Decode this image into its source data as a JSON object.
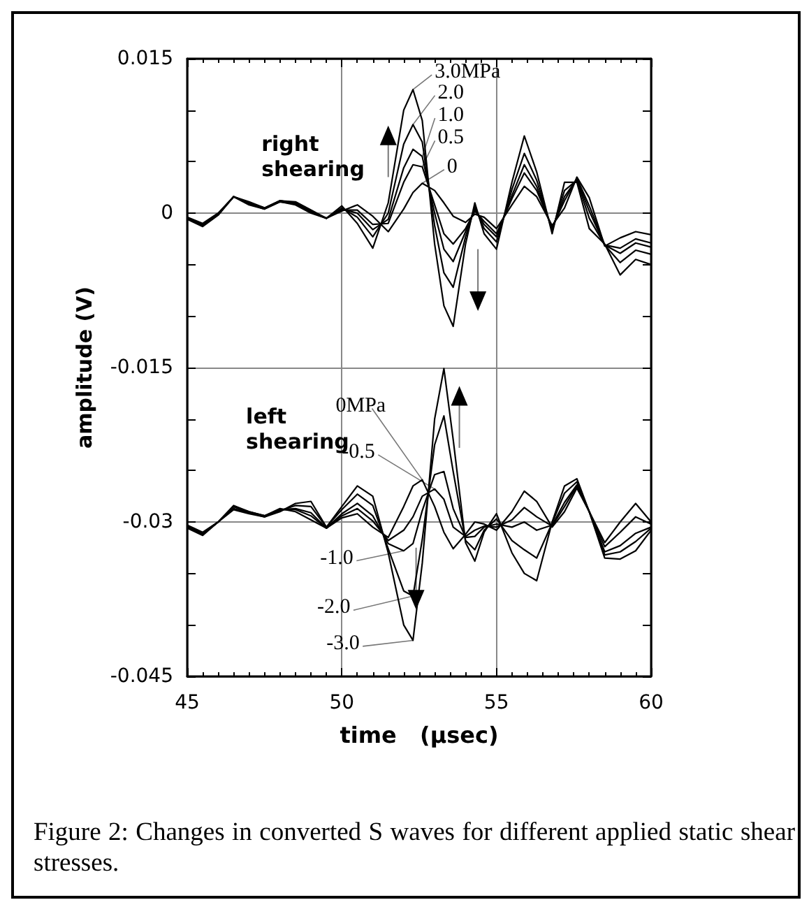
{
  "chart_data": {
    "type": "line",
    "xlabel": "time   (μsec)",
    "ylabel": "amplitude (V)",
    "x": [
      45,
      45.5,
      46,
      46.5,
      47,
      47.5,
      48,
      48.5,
      49,
      49.5,
      50,
      50.5,
      51,
      51.5,
      52,
      52.3,
      52.6,
      53,
      53.3,
      53.6,
      54,
      54.3,
      54.6,
      55,
      55.5,
      55.9,
      56.3,
      56.8,
      57.2,
      57.6,
      58,
      58.5,
      59,
      59.5,
      60
    ],
    "series": [
      {
        "name": "0",
        "color": "#000000",
        "values": [
          -0.0006,
          -0.0013,
          -0.0002,
          0.0016,
          0.0011,
          0.0005,
          0.0012,
          0.0011,
          0.0003,
          -0.0005,
          0.0002,
          0.0008,
          -0.0003,
          -0.0018,
          0.0004,
          0.002,
          0.0029,
          0.0022,
          0.001,
          -0.0003,
          -0.0009,
          -0.0001,
          -0.0004,
          -0.0015,
          0.0008,
          0.0026,
          0.0016,
          -0.0012,
          0.0005,
          0.0035,
          0.0015,
          -0.0032,
          -0.0024,
          -0.0018,
          -0.0021
        ]
      },
      {
        "name": "0.5",
        "color": "#000000",
        "values": [
          -0.0005,
          -0.0012,
          -0.0001,
          0.0016,
          0.001,
          0.0005,
          0.0012,
          0.001,
          0.0002,
          -0.0005,
          0.0003,
          0.0003,
          -0.0011,
          -0.001,
          0.003,
          0.0047,
          0.0045,
          0.0008,
          -0.002,
          -0.003,
          -0.0015,
          0.0002,
          -0.0008,
          -0.002,
          0.0014,
          0.0039,
          0.0022,
          -0.0014,
          0.0012,
          0.0034,
          0.0007,
          -0.0031,
          -0.0034,
          -0.0025,
          -0.0029
        ]
      },
      {
        "name": "1.0",
        "color": "#000000",
        "values": [
          -0.0005,
          -0.0012,
          -0.0001,
          0.0016,
          0.001,
          0.0005,
          0.0012,
          0.001,
          0.0002,
          -0.0005,
          0.0004,
          0.0,
          -0.0016,
          -0.0006,
          0.0044,
          0.0062,
          0.0055,
          0.0,
          -0.0035,
          -0.0047,
          -0.0018,
          0.0004,
          -0.0011,
          -0.0023,
          0.0017,
          0.0047,
          0.0026,
          -0.0015,
          0.0016,
          0.0033,
          0.0002,
          -0.0031,
          -0.0039,
          -0.0029,
          -0.0033
        ]
      },
      {
        "name": "2.0",
        "color": "#000000",
        "values": [
          -0.0005,
          -0.0011,
          -0.0001,
          0.0016,
          0.0009,
          0.0004,
          0.0011,
          0.0009,
          0.0001,
          -0.0005,
          0.0005,
          -0.0004,
          -0.0023,
          0.0,
          0.0067,
          0.0086,
          0.0069,
          -0.0012,
          -0.0058,
          -0.0072,
          -0.0023,
          0.0006,
          -0.0015,
          -0.0028,
          0.0023,
          0.0058,
          0.0032,
          -0.0017,
          0.0022,
          0.0032,
          -0.0005,
          -0.0031,
          -0.0048,
          -0.0036,
          -0.004
        ]
      },
      {
        "name": "3.0MPa",
        "color": "#000000",
        "values": [
          -0.0004,
          -0.001,
          0.0,
          0.0016,
          0.0008,
          0.0004,
          0.0011,
          0.0008,
          0.0,
          -0.0005,
          0.0007,
          -0.001,
          -0.0034,
          0.001,
          0.01,
          0.012,
          0.009,
          -0.003,
          -0.009,
          -0.011,
          -0.003,
          0.001,
          -0.002,
          -0.0035,
          0.003,
          0.0075,
          0.004,
          -0.002,
          0.003,
          0.003,
          -0.0015,
          -0.003,
          -0.006,
          -0.0045,
          -0.005
        ]
      },
      {
        "name": "0MPa",
        "color": "#000000",
        "values": [
          -0.0306,
          -0.0313,
          -0.03,
          -0.0284,
          -0.029,
          -0.0294,
          -0.0287,
          -0.029,
          -0.0298,
          -0.0306,
          -0.0296,
          -0.0292,
          -0.0305,
          -0.0315,
          -0.0285,
          -0.0265,
          -0.0259,
          -0.0285,
          -0.031,
          -0.0326,
          -0.0312,
          -0.03,
          -0.0302,
          -0.0308,
          -0.029,
          -0.027,
          -0.028,
          -0.0305,
          -0.029,
          -0.0267,
          -0.029,
          -0.0335,
          -0.0336,
          -0.0328,
          -0.0308
        ]
      },
      {
        "name": "-0.5",
        "color": "#000000",
        "values": [
          -0.0305,
          -0.0312,
          -0.03,
          -0.0285,
          -0.029,
          -0.0294,
          -0.0288,
          -0.0288,
          -0.0294,
          -0.0306,
          -0.0294,
          -0.0287,
          -0.0299,
          -0.0318,
          -0.0308,
          -0.0295,
          -0.0275,
          -0.0268,
          -0.0278,
          -0.0305,
          -0.0314,
          -0.0308,
          -0.0304,
          -0.0305,
          -0.0298,
          -0.0286,
          -0.0295,
          -0.0304,
          -0.0285,
          -0.0265,
          -0.029,
          -0.0332,
          -0.0329,
          -0.0319,
          -0.0306
        ]
      },
      {
        "name": "-1.0",
        "color": "#000000",
        "values": [
          -0.0305,
          -0.0312,
          -0.03,
          -0.0285,
          -0.0291,
          -0.0294,
          -0.0288,
          -0.0287,
          -0.0291,
          -0.0306,
          -0.0292,
          -0.0282,
          -0.0294,
          -0.0321,
          -0.0328,
          -0.0321,
          -0.0289,
          -0.0254,
          -0.0251,
          -0.0287,
          -0.0315,
          -0.0314,
          -0.0305,
          -0.0302,
          -0.0305,
          -0.03,
          -0.0308,
          -0.0303,
          -0.0281,
          -0.0264,
          -0.029,
          -0.0329,
          -0.0323,
          -0.0311,
          -0.0305
        ]
      },
      {
        "name": "-2.0",
        "color": "#000000",
        "values": [
          -0.0304,
          -0.0311,
          -0.03,
          -0.0287,
          -0.0291,
          -0.0295,
          -0.0289,
          -0.0284,
          -0.0285,
          -0.0305,
          -0.0288,
          -0.0273,
          -0.0284,
          -0.0326,
          -0.0367,
          -0.0372,
          -0.0317,
          -0.0225,
          -0.0197,
          -0.0251,
          -0.0318,
          -0.0327,
          -0.0308,
          -0.0297,
          -0.0318,
          -0.0327,
          -0.0335,
          -0.0301,
          -0.0272,
          -0.0261,
          -0.029,
          -0.0324,
          -0.031,
          -0.0295,
          -0.0302
        ]
      },
      {
        "name": "-3.0",
        "color": "#000000",
        "values": [
          -0.0303,
          -0.031,
          -0.03,
          -0.0288,
          -0.0292,
          -0.0295,
          -0.029,
          -0.0282,
          -0.028,
          -0.0305,
          -0.0285,
          -0.0265,
          -0.0275,
          -0.033,
          -0.04,
          -0.0415,
          -0.034,
          -0.02,
          -0.0151,
          -0.022,
          -0.032,
          -0.0338,
          -0.031,
          -0.0292,
          -0.033,
          -0.035,
          -0.0357,
          -0.03,
          -0.0265,
          -0.0258,
          -0.029,
          -0.032,
          -0.03,
          -0.0282,
          -0.03
        ]
      }
    ],
    "xlim": [
      45,
      60
    ],
    "xticks": [
      45,
      50,
      55,
      60
    ],
    "ylim": [
      -0.045,
      0.015
    ],
    "yticks": [
      -0.045,
      -0.03,
      -0.015,
      0,
      0.015
    ],
    "grid": true,
    "legend": "top",
    "marker": "none",
    "line_style": "solid",
    "annotations": [
      "right\nshearing",
      "left\nshearing",
      "Figure 2: Changes in converted S waves for different applied static shear stresses."
    ]
  }
}
